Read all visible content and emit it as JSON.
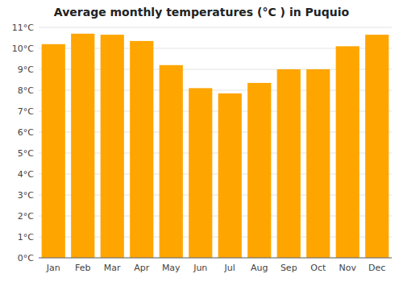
{
  "chart_data": {
    "type": "bar",
    "title": "Average monthly temperatures (°C ) in Puquio",
    "categories": [
      "Jan",
      "Feb",
      "Mar",
      "Apr",
      "May",
      "Jun",
      "Jul",
      "Aug",
      "Sep",
      "Oct",
      "Nov",
      "Dec"
    ],
    "values": [
      10.2,
      10.7,
      10.65,
      10.35,
      9.2,
      8.1,
      7.85,
      8.35,
      9.0,
      9.0,
      10.1,
      10.65
    ],
    "color": "#FFA500",
    "ylim": [
      0,
      11
    ],
    "yticks": [
      {
        "value": 0,
        "label": "0°C"
      },
      {
        "value": 1,
        "label": "1°C"
      },
      {
        "value": 2,
        "label": "2°C"
      },
      {
        "value": 3,
        "label": "3°C"
      },
      {
        "value": 4,
        "label": "4°C"
      },
      {
        "value": 5,
        "label": "5°C"
      },
      {
        "value": 6,
        "label": "6°C"
      },
      {
        "value": 7,
        "label": "7°C"
      },
      {
        "value": 8,
        "label": "8°C"
      },
      {
        "value": 9,
        "label": "9°C"
      },
      {
        "value": 10,
        "label": "10°C"
      },
      {
        "value": 11,
        "label": "11°C"
      }
    ],
    "grid": true
  }
}
